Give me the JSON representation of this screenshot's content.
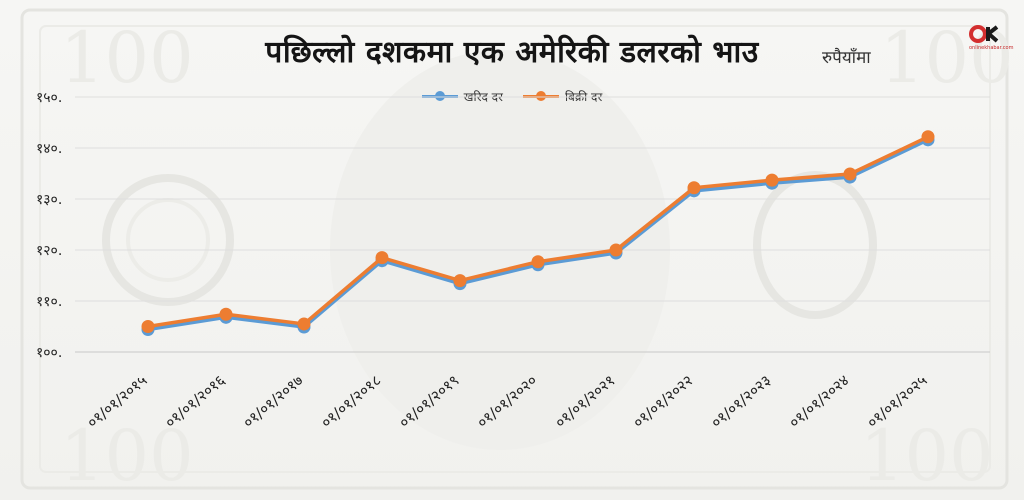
{
  "header": {
    "title": "पछिल्लो दशकमा एक अमेरिकी डलरको भाउ",
    "unit": "रुपैयाँमा",
    "logo_text": "onlinekhabar.com"
  },
  "colors": {
    "buy": "#5b9bd5",
    "sell": "#ed7d31",
    "logo_red": "#d32f2f",
    "logo_dark": "#1a1a1a"
  },
  "chart_data": {
    "type": "line",
    "categories": [
      "०१/०१/२०१५",
      "०१/०१/२०१६",
      "०१/०१/२०१७",
      "०१/०१/२०१८",
      "०१/०१/२०१९",
      "०१/०१/२०२०",
      "०१/०१/२०२१",
      "०१/०१/२०२२",
      "०१/०१/२०२३",
      "०१/०१/२०२४",
      "०१/०१/२०२५"
    ],
    "series": [
      {
        "name": "खरिद दर",
        "values": [
          104.4,
          106.8,
          104.9,
          117.9,
          113.4,
          117.1,
          119.4,
          131.6,
          133.1,
          134.3,
          141.6
        ]
      },
      {
        "name": "बिक्री दर",
        "values": [
          105.0,
          107.4,
          105.5,
          118.5,
          114.0,
          117.7,
          120.0,
          132.2,
          133.7,
          134.9,
          142.2
        ]
      }
    ],
    "yticks": [
      "१००.",
      "११०.",
      "१२०.",
      "१३०.",
      "१४०.",
      "१५०."
    ],
    "ylim": [
      100,
      150
    ],
    "xlabel": "",
    "ylabel": "",
    "grid": "horizontal",
    "legend": "top-center"
  }
}
